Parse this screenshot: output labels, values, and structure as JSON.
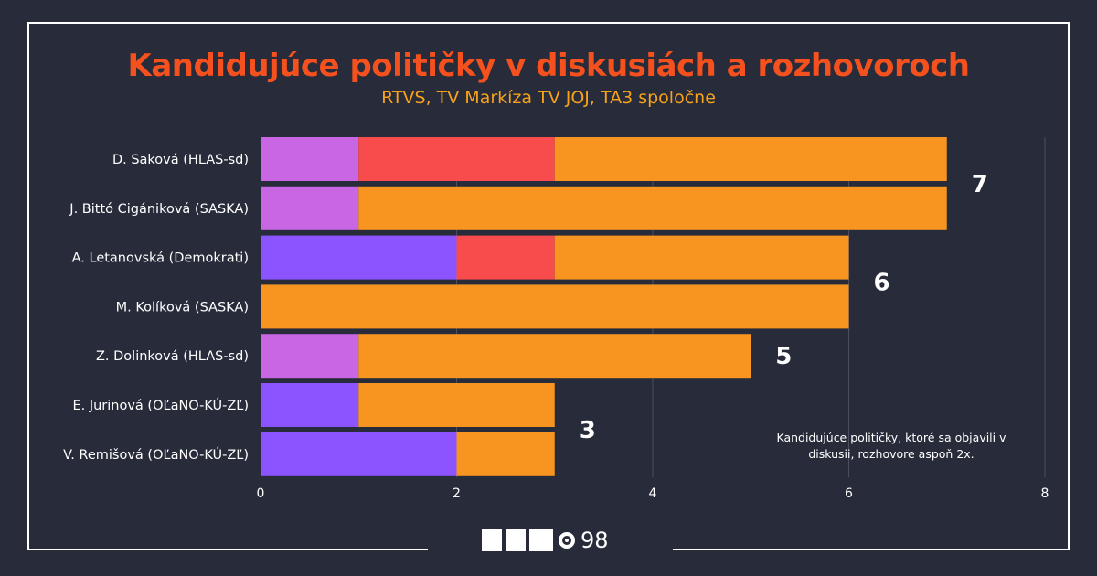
{
  "header": {
    "title": "Kandidujúce političky v diskusiách a rozhovoroch",
    "subtitle": "RTVS, TV Markíza TV JOJ, TA3 spoločne"
  },
  "logo": {
    "text": "98"
  },
  "colors": {
    "background": "#272b3a",
    "title": "#f4511e",
    "subtitle": "#f7a21a",
    "segment_palette": [
      "#c966e3",
      "#8b54ff",
      "#f84b4b",
      "#f79520"
    ]
  },
  "chart_data": {
    "type": "bar",
    "orientation": "horizontal",
    "stacked": true,
    "title": "Kandidujúce političky v diskusiách a rozhovoroch",
    "subtitle": "RTVS, TV Markíza TV JOJ, TA3 spoločne",
    "categories": [
      "D. Saková (HLAS-sd)",
      "J. Bittó Cigániková (SASKA)",
      "A. Letanovská (Demokrati)",
      "M. Kolíková (SASKA)",
      "Z. Dolinková (HLAS-sd)",
      "E. Jurinová (OĽaNO-KÚ-ZĽ)",
      "V. Remišová (OĽaNO-KÚ-ZĽ)"
    ],
    "segments": [
      [
        {
          "value": 1,
          "color": "#c966e3"
        },
        {
          "value": 2,
          "color": "#f84b4b"
        },
        {
          "value": 4,
          "color": "#f79520"
        }
      ],
      [
        {
          "value": 1,
          "color": "#c966e3"
        },
        {
          "value": 6,
          "color": "#f79520"
        }
      ],
      [
        {
          "value": 2,
          "color": "#8b54ff"
        },
        {
          "value": 1,
          "color": "#f84b4b"
        },
        {
          "value": 3,
          "color": "#f79520"
        }
      ],
      [
        {
          "value": 6,
          "color": "#f79520"
        }
      ],
      [
        {
          "value": 1,
          "color": "#c966e3"
        },
        {
          "value": 4,
          "color": "#f79520"
        }
      ],
      [
        {
          "value": 1,
          "color": "#8b54ff"
        },
        {
          "value": 2,
          "color": "#f79520"
        }
      ],
      [
        {
          "value": 2,
          "color": "#8b54ff"
        },
        {
          "value": 1,
          "color": "#f79520"
        }
      ]
    ],
    "totals": [
      7,
      7,
      6,
      6,
      5,
      3,
      3
    ],
    "total_labels": [
      {
        "text": "7",
        "rows": [
          0,
          1
        ]
      },
      {
        "text": "6",
        "rows": [
          2,
          3
        ]
      },
      {
        "text": "5",
        "rows": [
          4
        ]
      },
      {
        "text": "3",
        "rows": [
          5,
          6
        ]
      }
    ],
    "xlim": [
      0,
      8
    ],
    "xticks": [
      0,
      2,
      4,
      6,
      8
    ],
    "grid": true,
    "xlabel": "",
    "ylabel": "",
    "annotation": "Kandidujúce političky, ktoré sa objavili v diskusii, rozhovore aspoň 2x."
  }
}
